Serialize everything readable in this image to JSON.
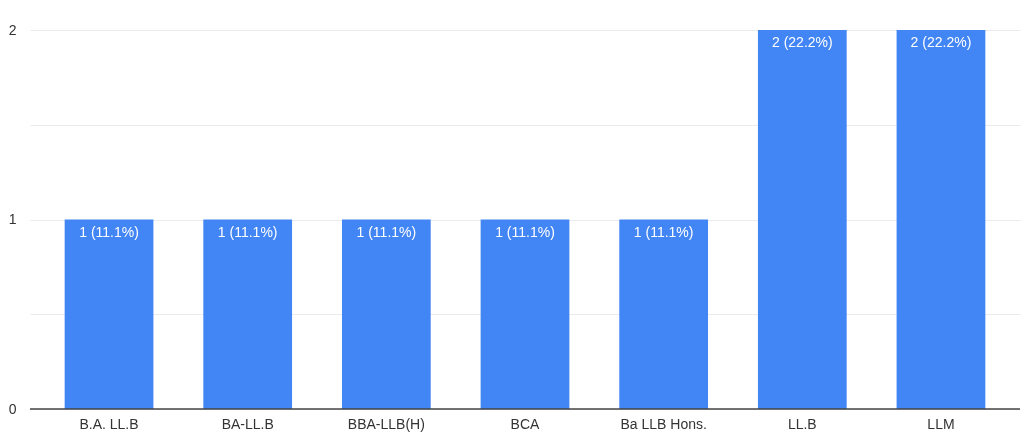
{
  "chart_data": {
    "type": "bar",
    "categories": [
      "B.A. LL.B",
      "BA-LL.B",
      "BBA-LLB(H)",
      "BCA",
      "Ba LLB Hons.",
      "LL.B",
      "LLM"
    ],
    "values": [
      1,
      1,
      1,
      1,
      1,
      2,
      2
    ],
    "value_labels": [
      "1 (11.1%)",
      "1 (11.1%)",
      "1 (11.1%)",
      "1 (11.1%)",
      "1 (11.1%)",
      "2 (22.2%)",
      "2 (22.2%)"
    ],
    "color": "#4285f4",
    "ylim": [
      0,
      2
    ],
    "yticks": [
      0,
      {
        "value": 0.5,
        "label": null
      },
      1,
      {
        "value": 1.5,
        "label": null
      },
      2
    ],
    "grid": "y"
  }
}
